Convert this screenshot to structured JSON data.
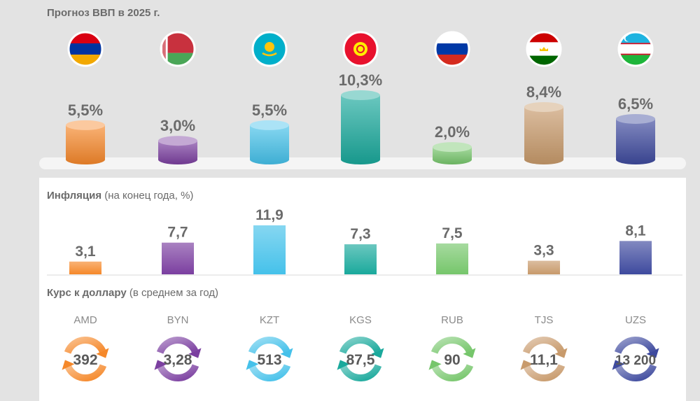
{
  "chart_data": [
    {
      "type": "bar",
      "title": "Прогноз ВВП в 2025 г.",
      "categories": [
        "Армения",
        "Беларусь",
        "Казахстан",
        "Кыргызстан",
        "Россия",
        "Таджикистан",
        "Узбекистан"
      ],
      "values": [
        5.5,
        3.0,
        5.5,
        10.3,
        2.0,
        8.4,
        6.5
      ],
      "labels": [
        "5,5%",
        "3,0%",
        "5,5%",
        "10,3%",
        "2,0%",
        "8,4%",
        "6,5%"
      ],
      "ylim": [
        0,
        10.3
      ]
    },
    {
      "type": "bar",
      "title": "Инфляция",
      "subtitle": "(на конец года, %)",
      "categories": [
        "Армения",
        "Беларусь",
        "Казахстан",
        "Кыргызстан",
        "Россия",
        "Таджикистан",
        "Узбекистан"
      ],
      "values": [
        3.1,
        7.7,
        11.9,
        7.3,
        7.5,
        3.3,
        8.1
      ],
      "labels": [
        "3,1",
        "7,7",
        "11,9",
        "7,3",
        "7,5",
        "3,3",
        "8,1"
      ],
      "ylim": [
        0,
        11.9
      ]
    },
    {
      "type": "table",
      "title": "Курс к доллару",
      "subtitle": "(в среднем за год)",
      "currencies": [
        "AMD",
        "BYN",
        "KZT",
        "KGS",
        "RUB",
        "TJS",
        "UZS"
      ],
      "values": [
        "392",
        "3,28",
        "513",
        "87,5",
        "90",
        "11,1",
        "13 200"
      ]
    }
  ],
  "icons": [
    "flag-armenia-icon",
    "flag-belarus-icon",
    "flag-kazakhstan-icon",
    "flag-kyrgyzstan-icon",
    "flag-russia-icon",
    "flag-tajikistan-icon",
    "flag-uzbekistan-icon",
    "exchange-arrows-icon"
  ],
  "colors": {
    "series": [
      "#f5882a",
      "#7b3fa0",
      "#45c1ea",
      "#1aa99c",
      "#76c66b",
      "#c89a6b",
      "#3e4a9e"
    ],
    "background": "#e3e3e3",
    "text": "#6b6b6b"
  }
}
